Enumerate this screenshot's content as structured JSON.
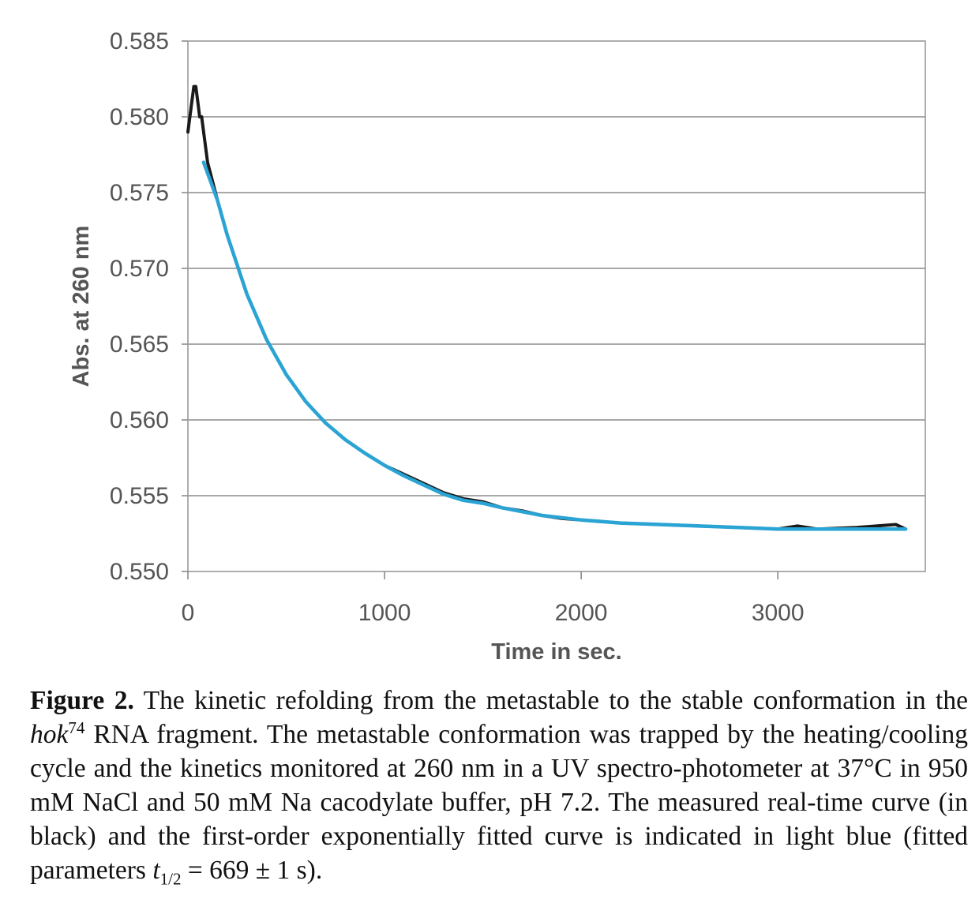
{
  "chart_data": {
    "type": "line",
    "xlabel": "Time in sec.",
    "ylabel": "Abs. at 260 nm",
    "xlim": [
      0,
      3750
    ],
    "ylim": [
      0.55,
      0.585
    ],
    "x_ticks": [
      "0",
      "1000",
      "2000",
      "3000"
    ],
    "y_ticks": [
      "0.585",
      "0.580",
      "0.575",
      "0.570",
      "0.565",
      "0.560",
      "0.555",
      "0.550"
    ],
    "grid": "horizontal",
    "series": [
      {
        "name": "measured",
        "color": "#1a1a1a",
        "x": [
          0,
          10,
          20,
          30,
          40,
          50,
          60,
          70,
          80,
          90,
          100,
          150,
          200,
          300,
          400,
          500,
          600,
          700,
          800,
          900,
          1000,
          1100,
          1200,
          1300,
          1400,
          1500,
          1600,
          1700,
          1800,
          1900,
          2000,
          2200,
          2400,
          2600,
          2800,
          3000,
          3100,
          3200,
          3400,
          3500,
          3600,
          3650
        ],
        "y": [
          0.579,
          0.58,
          0.581,
          0.582,
          0.582,
          0.581,
          0.58,
          0.58,
          0.579,
          0.578,
          0.577,
          0.5745,
          0.5722,
          0.5683,
          0.5653,
          0.563,
          0.5612,
          0.5598,
          0.5587,
          0.5578,
          0.557,
          0.5564,
          0.5558,
          0.5552,
          0.5548,
          0.5546,
          0.5542,
          0.554,
          0.5537,
          0.5535,
          0.5534,
          0.5532,
          0.5531,
          0.553,
          0.5529,
          0.5528,
          0.553,
          0.5528,
          0.5529,
          0.553,
          0.5531,
          0.5528
        ]
      },
      {
        "name": "first-order exponential fit",
        "color": "#2aa4d4",
        "x": [
          80,
          150,
          200,
          300,
          400,
          500,
          600,
          700,
          800,
          900,
          1000,
          1100,
          1200,
          1300,
          1400,
          1500,
          1600,
          1800,
          2000,
          2200,
          2400,
          2600,
          2800,
          3000,
          3200,
          3400,
          3650
        ],
        "y": [
          0.577,
          0.5745,
          0.5722,
          0.5683,
          0.5653,
          0.563,
          0.5612,
          0.5598,
          0.5587,
          0.5578,
          0.557,
          0.5563,
          0.5557,
          0.5551,
          0.5547,
          0.5545,
          0.5542,
          0.5537,
          0.5534,
          0.5532,
          0.5531,
          0.553,
          0.5529,
          0.5528,
          0.5528,
          0.5528,
          0.5528
        ]
      }
    ]
  },
  "caption": {
    "label": "Figure 2.",
    "part1": " The kinetic refolding from the metastable to the stable conformation in the ",
    "italic_word": "hok",
    "superscript": "74",
    "part2": " RNA fragment. The metastable conformation was trapped by the heating/cooling cycle and the kinetics monitored at 260 nm in a UV spectro-photometer at 37°C in 950 mM NaCl and 50 mM Na cacodylate buffer, pH 7.2. The measured real-time curve (in black) and the first-order exponentially fitted curve is indicated in light blue (fitted parameters ",
    "param_symbol": "t",
    "param_subscript": "1/2",
    "part3": " = 669 ± 1 s)."
  }
}
